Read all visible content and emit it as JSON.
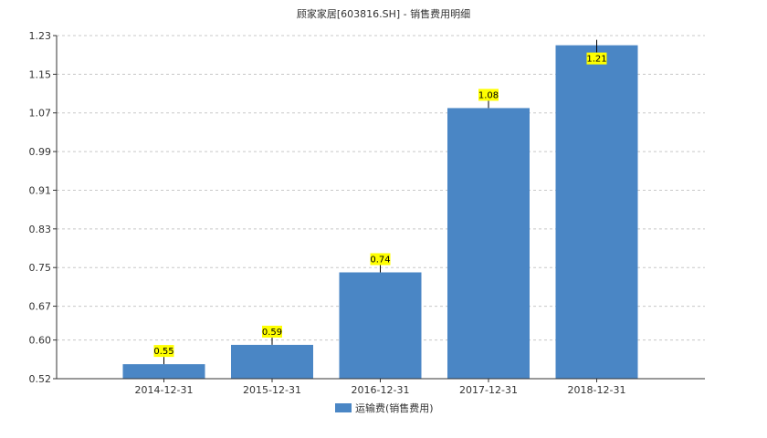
{
  "chart_data": {
    "type": "bar",
    "title": "顾家家居[603816.SH] - 销售费用明细",
    "categories": [
      "2014-12-31",
      "2015-12-31",
      "2016-12-31",
      "2017-12-31",
      "2018-12-31"
    ],
    "series": [
      {
        "name": "运输费(销售费用)",
        "values": [
          0.55,
          0.59,
          0.74,
          1.08,
          1.21
        ],
        "color": "#4a86c5"
      }
    ],
    "y_ticks": [
      "0.52",
      "0.60",
      "0.67",
      "0.75",
      "0.83",
      "0.91",
      "0.99",
      "1.07",
      "1.15",
      "1.23"
    ],
    "ylim": [
      0.52,
      1.23
    ],
    "grid": true,
    "legend_position": "bottom-center",
    "data_labels": [
      "0.55",
      "0.59",
      "0.74",
      "1.08",
      "1.21"
    ],
    "label_bg_color": "#ffff00"
  }
}
